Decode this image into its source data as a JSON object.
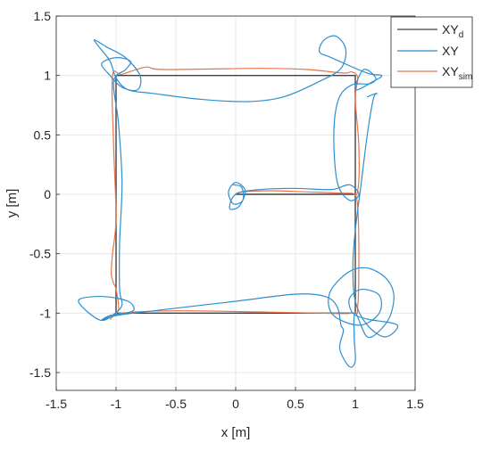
{
  "chart_data": {
    "type": "line",
    "xlabel": "x [m]",
    "ylabel": "y [m]",
    "xlim": [
      -1.5,
      1.5
    ],
    "ylim": [
      -1.65,
      1.5
    ],
    "grid": true,
    "legend_position": "top-right",
    "x_ticks": [
      -1.5,
      -1,
      -0.5,
      0,
      0.5,
      1,
      1.5
    ],
    "x_tick_labels": [
      "-1.5",
      "-1",
      "-0.5",
      "0",
      "0.5",
      "1",
      "1.5"
    ],
    "y_ticks": [
      -1.5,
      -1,
      -0.5,
      0,
      0.5,
      1,
      1.5
    ],
    "y_tick_labels": [
      "-1.5",
      "-1",
      "-0.5",
      "0",
      "0.5",
      "1",
      "1.5"
    ],
    "legend": [
      {
        "base": "XY",
        "sub": "d"
      },
      {
        "base": "XY",
        "sub": ""
      },
      {
        "base": "XY",
        "sub": "sim"
      }
    ],
    "series": [
      {
        "key": "XY_d",
        "color": "#404040",
        "points": [
          [
            0,
            0
          ],
          [
            1,
            0
          ],
          [
            1,
            1
          ],
          [
            -1,
            1
          ],
          [
            -1,
            -1
          ],
          [
            1,
            -1
          ],
          [
            1,
            0
          ]
        ]
      },
      {
        "key": "XY_sim",
        "color": "#e8734a",
        "points": [
          [
            0.0,
            0.0
          ],
          [
            0.05,
            0.02
          ],
          [
            0.3,
            0.03
          ],
          [
            0.6,
            0.02
          ],
          [
            0.95,
            0.01
          ],
          [
            1.02,
            0.03
          ],
          [
            1.03,
            0.4
          ],
          [
            1.0,
            0.8
          ],
          [
            1.02,
            0.98
          ],
          [
            0.97,
            1.03
          ],
          [
            0.9,
            1.02
          ],
          [
            0.6,
            1.05
          ],
          [
            0.2,
            1.06
          ],
          [
            -0.6,
            1.05
          ],
          [
            -0.75,
            1.07
          ],
          [
            -0.95,
            1.01
          ],
          [
            -1.03,
            0.99
          ],
          [
            -1.02,
            0.4
          ],
          [
            -1.0,
            -0.2
          ],
          [
            -1.03,
            -0.5
          ],
          [
            -1.04,
            -0.67
          ],
          [
            -1.02,
            -0.75
          ],
          [
            -1.0,
            -0.8
          ],
          [
            -0.98,
            -0.97
          ],
          [
            -1.05,
            -1.05
          ],
          [
            -0.95,
            -1.0
          ],
          [
            -0.5,
            -0.98
          ],
          [
            0.2,
            -0.99
          ],
          [
            0.7,
            -1.0
          ],
          [
            0.98,
            -1.0
          ],
          [
            1.02,
            -0.95
          ],
          [
            1.03,
            -0.5
          ],
          [
            1.02,
            -0.1
          ],
          [
            1.0,
            0.0
          ]
        ]
      },
      {
        "key": "XY",
        "color": "#2e8fcf",
        "points": [
          [
            -0.02,
            0.08
          ],
          [
            0.05,
            0.06
          ],
          [
            0.06,
            -0.05
          ],
          [
            -0.02,
            -0.08
          ],
          [
            -0.06,
            0.02
          ],
          [
            0.0,
            0.1
          ],
          [
            0.08,
            0.03
          ],
          [
            0.03,
            -0.1
          ],
          [
            -0.05,
            -0.12
          ],
          [
            0.0,
            0.0
          ],
          [
            0.2,
            0.04
          ],
          [
            0.5,
            0.05
          ],
          [
            0.8,
            0.04
          ],
          [
            0.95,
            0.08
          ],
          [
            1.03,
            0.0
          ],
          [
            0.95,
            -0.05
          ],
          [
            0.85,
            0.1
          ],
          [
            0.82,
            0.5
          ],
          [
            0.86,
            0.8
          ],
          [
            0.97,
            0.92
          ],
          [
            1.12,
            0.93
          ],
          [
            1.17,
            0.98
          ],
          [
            1.07,
            1.05
          ],
          [
            1.0,
            0.88
          ],
          [
            1.15,
            0.95
          ],
          [
            1.22,
            1.0
          ],
          [
            1.1,
            1.02
          ],
          [
            0.8,
            1.15
          ],
          [
            0.7,
            1.2
          ],
          [
            0.74,
            1.3
          ],
          [
            0.84,
            1.33
          ],
          [
            0.92,
            1.22
          ],
          [
            0.88,
            1.06
          ],
          [
            0.7,
            0.95
          ],
          [
            0.4,
            0.82
          ],
          [
            0.1,
            0.78
          ],
          [
            -0.3,
            0.8
          ],
          [
            -0.7,
            0.85
          ],
          [
            -0.9,
            0.88
          ],
          [
            -1.0,
            0.98
          ],
          [
            -1.05,
            1.12
          ],
          [
            -1.15,
            1.25
          ],
          [
            -1.18,
            1.3
          ],
          [
            -1.08,
            1.24
          ],
          [
            -0.92,
            1.15
          ],
          [
            -0.8,
            1.0
          ],
          [
            -0.82,
            0.88
          ],
          [
            -0.95,
            0.9
          ],
          [
            -1.05,
            1.0
          ],
          [
            -1.12,
            1.1
          ],
          [
            -1.0,
            1.15
          ],
          [
            -0.88,
            1.12
          ],
          [
            -0.92,
            1.05
          ],
          [
            -1.02,
            0.95
          ],
          [
            -0.98,
            0.6
          ],
          [
            -0.95,
            0.1
          ],
          [
            -0.97,
            -0.4
          ],
          [
            -0.97,
            -0.8
          ],
          [
            -0.95,
            -0.93
          ],
          [
            -1.02,
            -1.01
          ],
          [
            -1.13,
            -1.06
          ],
          [
            -1.28,
            -0.95
          ],
          [
            -1.3,
            -0.88
          ],
          [
            -1.1,
            -0.86
          ],
          [
            -0.9,
            -0.9
          ],
          [
            -0.85,
            -0.97
          ],
          [
            -0.92,
            -1.0
          ],
          [
            -1.05,
            -1.02
          ],
          [
            -1.12,
            -1.06
          ],
          [
            -1.0,
            -1.02
          ],
          [
            -0.6,
            -0.97
          ],
          [
            0.0,
            -0.9
          ],
          [
            0.5,
            -0.84
          ],
          [
            0.75,
            -0.86
          ],
          [
            0.85,
            -0.95
          ],
          [
            0.88,
            -1.1
          ],
          [
            0.9,
            -1.15
          ],
          [
            0.87,
            -1.3
          ],
          [
            0.95,
            -1.45
          ],
          [
            1.0,
            -1.4
          ],
          [
            0.99,
            -1.2
          ],
          [
            1.0,
            -1.0
          ],
          [
            1.1,
            -1.2
          ],
          [
            1.22,
            -1.13
          ],
          [
            1.3,
            -1.0
          ],
          [
            1.32,
            -0.83
          ],
          [
            1.25,
            -0.7
          ],
          [
            1.1,
            -0.62
          ],
          [
            0.95,
            -0.65
          ],
          [
            0.8,
            -0.8
          ],
          [
            0.78,
            -0.95
          ],
          [
            0.86,
            -1.05
          ],
          [
            1.05,
            -1.1
          ],
          [
            1.2,
            -1.0
          ],
          [
            1.2,
            -0.85
          ],
          [
            1.05,
            -0.8
          ],
          [
            0.95,
            -0.88
          ],
          [
            0.98,
            -1.0
          ],
          [
            1.1,
            -1.05
          ],
          [
            1.35,
            -1.1
          ],
          [
            1.25,
            -1.2
          ],
          [
            1.1,
            -1.1
          ],
          [
            1.0,
            -0.9
          ],
          [
            0.98,
            -0.6
          ],
          [
            1.0,
            -0.3
          ],
          [
            1.05,
            0.1
          ],
          [
            1.1,
            0.5
          ],
          [
            1.15,
            0.8
          ],
          [
            1.18,
            0.85
          ],
          [
            1.1,
            0.82
          ]
        ]
      }
    ]
  }
}
